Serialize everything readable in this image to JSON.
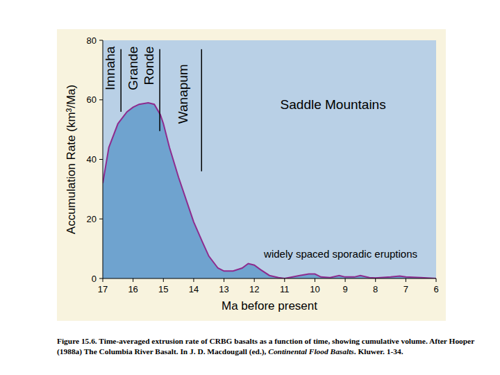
{
  "chart_data": {
    "type": "area",
    "x_label": "Ma before present",
    "y_label": "Accumulation Rate (km³/Ma)",
    "x": [
      17,
      16.8,
      16.5,
      16.2,
      16,
      15.8,
      15.5,
      15.3,
      15.1,
      15,
      14.8,
      14.5,
      14.2,
      14,
      13.7,
      13.5,
      13.2,
      13,
      12.7,
      12.4,
      12.2,
      12,
      11.8,
      11.5,
      11.2,
      11,
      10.5,
      10.2,
      10,
      9.8,
      9.5,
      9.2,
      9,
      8.7,
      8.5,
      8.2,
      8,
      7.5,
      7.2,
      7,
      6.5,
      6
    ],
    "values": [
      32,
      44,
      52,
      56,
      57.5,
      58.5,
      59,
      58.5,
      55,
      52,
      44,
      34,
      25,
      19,
      12,
      7.5,
      3.5,
      2.5,
      2.5,
      3.5,
      5,
      4.5,
      3,
      1,
      0.3,
      0,
      1,
      1.5,
      1.5,
      0.5,
      0.3,
      1,
      0.5,
      0.5,
      1,
      0.3,
      0.2,
      0.5,
      0.8,
      0.5,
      0.3,
      0
    ],
    "color": "#6fa3cf",
    "xlim": [
      17,
      6
    ],
    "xticks": [
      17,
      16,
      15,
      14,
      13,
      12,
      11,
      10,
      9,
      8,
      7,
      6
    ],
    "ylim": [
      0,
      80
    ],
    "yticks": [
      0,
      20,
      40,
      60,
      80
    ],
    "annotations": [
      {
        "text": "Imnaha",
        "x": 16.62,
        "y": 78,
        "orientation": "vertical"
      },
      {
        "text": "Grande Ronde",
        "x": 15.85,
        "y": 78,
        "orientation": "vertical"
      },
      {
        "text": "Wanapum",
        "x": 14.2,
        "y": 72,
        "orientation": "vertical"
      },
      {
        "text": "Saddle Mountains",
        "x": 9.4,
        "y": 57,
        "orientation": "horizontal"
      },
      {
        "text": "widely spaced sporadic eruptions",
        "x": 9.15,
        "y": 7,
        "orientation": "horizontal"
      }
    ],
    "boundaries": [
      {
        "x": 16.4,
        "ymin": 56,
        "ymax": 77
      },
      {
        "x": 15.12,
        "ymin": 49.5,
        "ymax": 77
      },
      {
        "x": 13.74,
        "ymin": 36,
        "ymax": 77
      }
    ]
  },
  "caption": {
    "parts": [
      {
        "text": "Figure 15.6. Time-averaged extrusion rate of CRBG basalts as a function of time, showing cumulative volume. After Hooper (1988a) The Columbia River Basalt. In J. D. Macdougall (ed.), ",
        "italic": false
      },
      {
        "text": "Continental Flood Basalts",
        "italic": true
      },
      {
        "text": ". Kluwer. 1-34.",
        "italic": false
      }
    ]
  }
}
